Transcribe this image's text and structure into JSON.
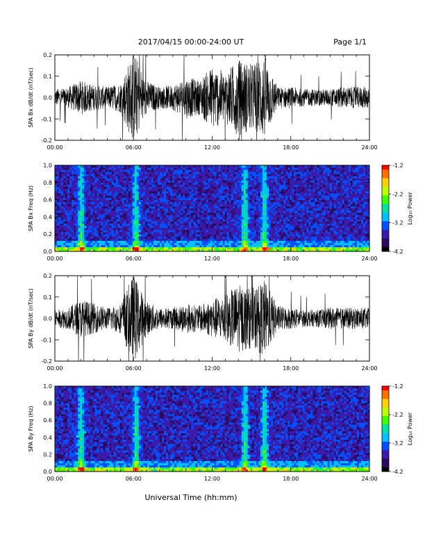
{
  "header": {
    "title": "2017/04/15  00:00-24:00 UT",
    "page": "Page 1/1"
  },
  "footer": {
    "xlabel": "Universal Time (hh:mm)"
  },
  "colorbar": {
    "label": "Log₁₀ Power",
    "ticks": [
      "-1.2",
      "-2.2",
      "-3.2",
      "-4.2"
    ],
    "range": [
      -4.2,
      -1.2
    ],
    "colors": [
      "#000000",
      "#2a0a5e",
      "#3a1aa8",
      "#0050ff",
      "#00c0ff",
      "#00e0a0",
      "#40ff00",
      "#c0ff00",
      "#ffd000",
      "#ff7000",
      "#ff0000"
    ]
  },
  "chart_data": [
    {
      "type": "line",
      "ylabel": "SPA Bx dB/dt (nT/sec)",
      "xlim": [
        0,
        24
      ],
      "ylim": [
        -0.2,
        0.2
      ],
      "xticks": [
        "00:00",
        "06:00",
        "12:00",
        "18:00",
        "24:00"
      ],
      "yticks": [
        "0.2",
        "0.1",
        "0.0",
        "-0.1",
        "-0.2"
      ],
      "activity": [
        {
          "hour": 0,
          "amp": 0.04
        },
        {
          "hour": 1,
          "amp": 0.05
        },
        {
          "hour": 2,
          "amp": 0.08
        },
        {
          "hour": 3,
          "amp": 0.06
        },
        {
          "hour": 4,
          "amp": 0.05
        },
        {
          "hour": 5,
          "amp": 0.07
        },
        {
          "hour": 6,
          "amp": 0.22
        },
        {
          "hour": 7,
          "amp": 0.08
        },
        {
          "hour": 8,
          "amp": 0.05
        },
        {
          "hour": 9,
          "amp": 0.06
        },
        {
          "hour": 10,
          "amp": 0.1
        },
        {
          "hour": 11,
          "amp": 0.08
        },
        {
          "hour": 12,
          "amp": 0.15
        },
        {
          "hour": 13,
          "amp": 0.12
        },
        {
          "hour": 14,
          "amp": 0.18
        },
        {
          "hour": 15,
          "amp": 0.16
        },
        {
          "hour": 16,
          "amp": 0.2
        },
        {
          "hour": 17,
          "amp": 0.05
        },
        {
          "hour": 18,
          "amp": 0.05
        },
        {
          "hour": 19,
          "amp": 0.04
        },
        {
          "hour": 20,
          "amp": 0.04
        },
        {
          "hour": 21,
          "amp": 0.04
        },
        {
          "hour": 22,
          "amp": 0.05
        },
        {
          "hour": 23,
          "amp": 0.05
        },
        {
          "hour": 24,
          "amp": 0.05
        }
      ]
    },
    {
      "type": "heatmap",
      "ylabel": "SPA Bx Freq (Hz)",
      "xlim": [
        0,
        24
      ],
      "ylim": [
        0.0,
        1.0
      ],
      "xticks": [
        "00:00",
        "06:00",
        "12:00",
        "18:00",
        "24:00"
      ],
      "yticks": [
        "1.0",
        "0.8",
        "0.6",
        "0.4",
        "0.2",
        "0.0"
      ],
      "zlim": [
        -4.2,
        -1.2
      ],
      "bright_hours": [
        2.0,
        6.2,
        14.5,
        16.0
      ]
    },
    {
      "type": "line",
      "ylabel": "SPA By dB/dt (nT/sec)",
      "xlim": [
        0,
        24
      ],
      "ylim": [
        -0.2,
        0.2
      ],
      "xticks": [
        "00:00",
        "06:00",
        "12:00",
        "18:00",
        "24:00"
      ],
      "yticks": [
        "0.2",
        "0.1",
        "0.0",
        "-0.1",
        "-0.2"
      ],
      "activity": [
        {
          "hour": 0,
          "amp": 0.04
        },
        {
          "hour": 1,
          "amp": 0.05
        },
        {
          "hour": 2,
          "amp": 0.09
        },
        {
          "hour": 3,
          "amp": 0.07
        },
        {
          "hour": 4,
          "amp": 0.05
        },
        {
          "hour": 5,
          "amp": 0.07
        },
        {
          "hour": 6,
          "amp": 0.21
        },
        {
          "hour": 7,
          "amp": 0.08
        },
        {
          "hour": 8,
          "amp": 0.05
        },
        {
          "hour": 9,
          "amp": 0.05
        },
        {
          "hour": 10,
          "amp": 0.07
        },
        {
          "hour": 11,
          "amp": 0.06
        },
        {
          "hour": 12,
          "amp": 0.09
        },
        {
          "hour": 13,
          "amp": 0.11
        },
        {
          "hour": 14,
          "amp": 0.16
        },
        {
          "hour": 15,
          "amp": 0.14
        },
        {
          "hour": 16,
          "amp": 0.18
        },
        {
          "hour": 17,
          "amp": 0.06
        },
        {
          "hour": 18,
          "amp": 0.05
        },
        {
          "hour": 19,
          "amp": 0.04
        },
        {
          "hour": 20,
          "amp": 0.04
        },
        {
          "hour": 21,
          "amp": 0.05
        },
        {
          "hour": 22,
          "amp": 0.05
        },
        {
          "hour": 23,
          "amp": 0.05
        },
        {
          "hour": 24,
          "amp": 0.05
        }
      ]
    },
    {
      "type": "heatmap",
      "ylabel": "SPA By Freq (Hz)",
      "xlim": [
        0,
        24
      ],
      "ylim": [
        0.0,
        1.0
      ],
      "xticks": [
        "00:00",
        "06:00",
        "12:00",
        "18:00",
        "24:00"
      ],
      "yticks": [
        "1.0",
        "0.8",
        "0.6",
        "0.4",
        "0.2",
        "0.0"
      ],
      "zlim": [
        -4.2,
        -1.2
      ],
      "bright_hours": [
        2.0,
        6.2,
        14.5,
        16.0
      ]
    }
  ]
}
